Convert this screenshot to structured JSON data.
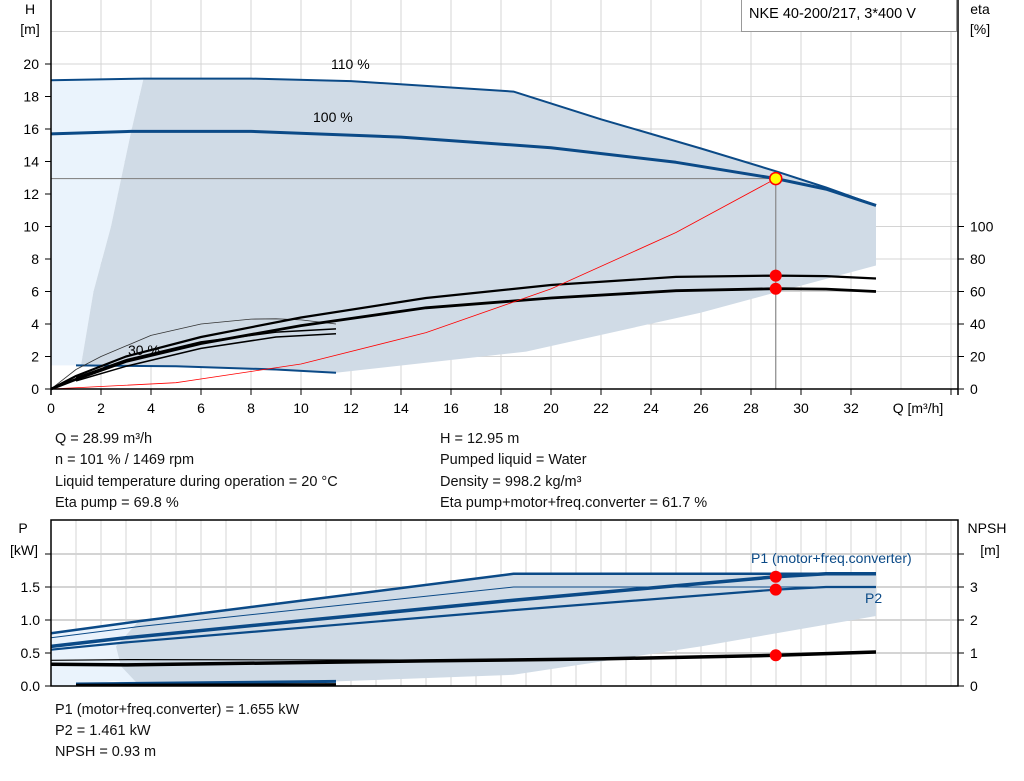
{
  "title": "NKE 40-200/217, 3*400 V",
  "colors": {
    "curve": "#0b4a87",
    "shade": "#d0dbe6",
    "light": "#eaf3fc",
    "grid": "#d4d4d4",
    "red": "#ff0000",
    "yellow": "#ffff00"
  },
  "chart_data": [
    {
      "type": "line",
      "name_labels": {
        "c110": "110 %",
        "c100": "100 %",
        "c30": "30 %"
      },
      "xlabel": "Q [m³/h]",
      "ylabel": [
        "H",
        "[m]"
      ],
      "y2label": [
        "eta",
        "[%]"
      ],
      "xlim": [
        0,
        36
      ],
      "ylim": [
        0,
        23.8
      ],
      "y2lim": [
        0,
        146.5
      ],
      "xticks": [
        0,
        2,
        4,
        6,
        8,
        10,
        12,
        14,
        16,
        18,
        20,
        22,
        24,
        26,
        28,
        30,
        32
      ],
      "yticks": [
        0,
        2,
        4,
        6,
        8,
        10,
        12,
        14,
        16,
        18,
        20
      ],
      "y2ticks": [
        0,
        20,
        40,
        60,
        80,
        100
      ],
      "grid": true,
      "series": [
        {
          "key": "c110",
          "axis": "H",
          "points": [
            [
              0,
              19.0
            ],
            [
              3.7,
              19.1
            ],
            [
              8,
              19.1
            ],
            [
              12,
              18.95
            ],
            [
              18.5,
              18.3
            ],
            [
              22,
              16.6
            ],
            [
              26,
              14.8
            ],
            [
              29,
              13.4
            ],
            [
              31,
              12.4
            ],
            [
              33,
              11.3
            ]
          ]
        },
        {
          "key": "c100",
          "axis": "H",
          "points": [
            [
              0,
              15.7
            ],
            [
              3.2,
              15.85
            ],
            [
              8,
              15.85
            ],
            [
              14,
              15.5
            ],
            [
              20,
              14.85
            ],
            [
              25,
              13.95
            ],
            [
              29,
              12.95
            ],
            [
              31,
              12.3
            ],
            [
              33,
              11.3
            ]
          ]
        },
        {
          "key": "c30",
          "axis": "H",
          "points": [
            [
              1,
              1.45
            ],
            [
              5,
              1.4
            ],
            [
              9,
              1.2
            ],
            [
              11.4,
              1.0
            ]
          ]
        },
        {
          "key": "eta_low_speed",
          "axis": "eta",
          "points": [
            [
              0,
              0
            ],
            [
              1,
              12
            ],
            [
              2,
              20
            ],
            [
              4,
              33
            ],
            [
              6,
              40
            ],
            [
              8,
              43
            ],
            [
              9,
              43.2
            ],
            [
              10,
              42.5
            ],
            [
              11.4,
              40
            ]
          ]
        },
        {
          "key": "eta_pump",
          "axis": "eta",
          "points": [
            [
              0,
              0
            ],
            [
              1,
              8
            ],
            [
              3,
              20
            ],
            [
              6,
              32
            ],
            [
              10,
              44
            ],
            [
              15,
              56
            ],
            [
              20,
              64
            ],
            [
              25,
              69
            ],
            [
              29,
              69.8
            ],
            [
              31,
              69.5
            ],
            [
              33,
              68
            ]
          ]
        },
        {
          "key": "eta_total",
          "axis": "eta",
          "points": [
            [
              0,
              0
            ],
            [
              1,
              6
            ],
            [
              3,
              17
            ],
            [
              6,
              28
            ],
            [
              10,
              39
            ],
            [
              15,
              50
            ],
            [
              20,
              56
            ],
            [
              25,
              60.5
            ],
            [
              29,
              61.7
            ],
            [
              31,
              61.5
            ],
            [
              33,
              60
            ]
          ]
        },
        {
          "key": "eta_30_a",
          "axis": "eta",
          "points": [
            [
              1,
              7
            ],
            [
              3,
              18
            ],
            [
              6,
              29
            ],
            [
              9,
              35
            ],
            [
              11.4,
              37
            ]
          ]
        },
        {
          "key": "eta_30_b",
          "axis": "eta",
          "points": [
            [
              1,
              5
            ],
            [
              3,
              14
            ],
            [
              6,
              25
            ],
            [
              9,
              32
            ],
            [
              11.4,
              34
            ]
          ]
        }
      ],
      "system_curve": {
        "points": [
          [
            0,
            0
          ],
          [
            5,
            0.39
          ],
          [
            10,
            1.54
          ],
          [
            15,
            3.47
          ],
          [
            20,
            6.16
          ],
          [
            25,
            9.63
          ],
          [
            28.99,
            12.95
          ]
        ]
      },
      "operating_point": {
        "Q": 28.99,
        "H": 12.95,
        "eta_pump": 69.8,
        "eta_total": 61.7
      }
    },
    {
      "type": "line",
      "ylabel": [
        "P",
        "[kW]"
      ],
      "y2label": [
        "NPSH",
        "[m]"
      ],
      "xlim": [
        0,
        36
      ],
      "ylim": [
        0,
        2.5
      ],
      "y2lim": [
        0,
        5
      ],
      "yticks": [
        0.0,
        0.5,
        1.0,
        1.5
      ],
      "ytick_labels": [
        "0.0",
        "0.5",
        "1.0",
        "1.5"
      ],
      "y2ticks": [
        0,
        1,
        2,
        3
      ],
      "grid": true,
      "labels": {
        "p1": "P1 (motor+freq.converter)",
        "p2": "P2"
      },
      "series": [
        {
          "key": "p1_110",
          "axis": "P",
          "points": [
            [
              0,
              0.8
            ],
            [
              3.5,
              0.98
            ],
            [
              18.5,
              1.7
            ],
            [
              33,
              1.7
            ]
          ]
        },
        {
          "key": "p2_110",
          "axis": "P",
          "points": [
            [
              0,
              0.73
            ],
            [
              3.5,
              0.9
            ],
            [
              18.5,
              1.5
            ],
            [
              33,
              1.5
            ]
          ]
        },
        {
          "key": "p1_100",
          "axis": "P",
          "points": [
            [
              0,
              0.6
            ],
            [
              3,
              0.73
            ],
            [
              18.5,
              1.3
            ],
            [
              29,
              1.655
            ],
            [
              31,
              1.7
            ],
            [
              33,
              1.7
            ]
          ]
        },
        {
          "key": "p2_100",
          "axis": "P",
          "points": [
            [
              0,
              0.55
            ],
            [
              3,
              0.66
            ],
            [
              18.5,
              1.15
            ],
            [
              29,
              1.461
            ],
            [
              31,
              1.5
            ],
            [
              33,
              1.5
            ]
          ]
        },
        {
          "key": "p_30",
          "axis": "P",
          "points": [
            [
              1,
              0.03
            ],
            [
              11.4,
              0.07
            ]
          ]
        },
        {
          "key": "npsh_thin",
          "axis": "NPSH",
          "points": [
            [
              0,
              0.78
            ],
            [
              3.2,
              0.8
            ],
            [
              20,
              0.78
            ]
          ]
        },
        {
          "key": "npsh",
          "axis": "NPSH",
          "points": [
            [
              0,
              0.66
            ],
            [
              3,
              0.64
            ],
            [
              15,
              0.76
            ],
            [
              22,
              0.82
            ],
            [
              29,
              0.93
            ],
            [
              33,
              1.03
            ]
          ]
        },
        {
          "key": "npsh_30",
          "axis": "NPSH",
          "points": [
            [
              1,
              0.03
            ],
            [
              11.4,
              0.05
            ]
          ]
        }
      ],
      "operating_point": {
        "Q": 28.99,
        "P1": 1.655,
        "P2": 1.461,
        "NPSH": 0.93
      }
    }
  ],
  "info_top_left": [
    "Q = 28.99 m³/h",
    "n = 101 % / 1469 rpm",
    "Liquid temperature during operation = 20 °C",
    "Eta pump = 69.8 %"
  ],
  "info_top_right": [
    "H = 12.95 m",
    "Pumped liquid = Water",
    "Density = 998.2 kg/m³",
    "Eta pump+motor+freq.converter = 61.7 %"
  ],
  "info_bottom": [
    "P1 (motor+freq.converter) = 1.655 kW",
    "P2 = 1.461 kW",
    "NPSH = 0.93 m"
  ]
}
